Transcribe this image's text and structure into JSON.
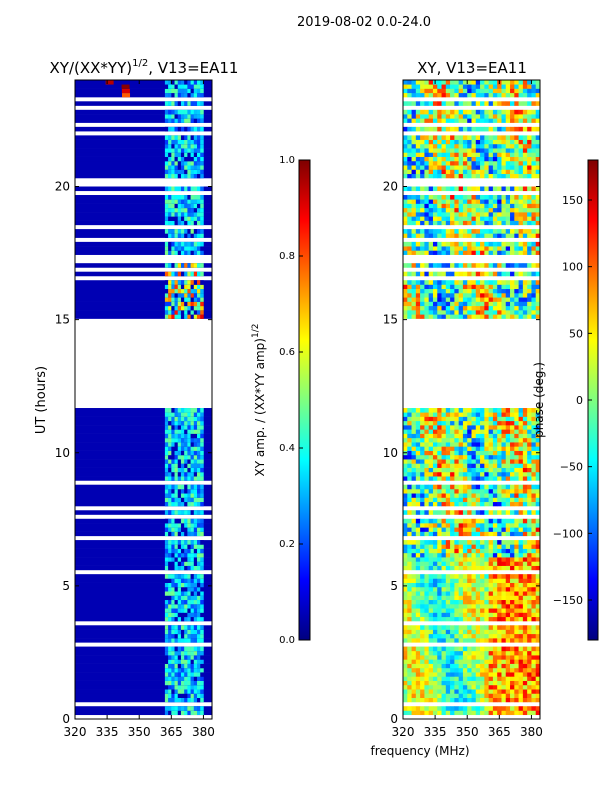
{
  "figure": {
    "suptitle": "2019-08-02 0.0-24.0",
    "shared_xlabel": "frequency (MHz)"
  },
  "chart_data": [
    {
      "type": "heatmap",
      "title_main": "XY/(XX*YY)",
      "title_sup": "1/2",
      "title_rest": ", V13=EA11",
      "ylabel": "UT (hours)",
      "xlim": [
        320,
        384
      ],
      "ylim": [
        0,
        24
      ],
      "xticks": [
        320,
        335,
        350,
        365,
        380
      ],
      "yticks": [
        0,
        5,
        10,
        15,
        20
      ],
      "data_gap_hours": [
        11.8,
        15.0
      ],
      "active_band_mhz": [
        362,
        380
      ],
      "colorbar": {
        "label_main": "XY amp. / (XX*YY amp)",
        "label_sup": "1/2",
        "range": [
          0.0,
          1.0
        ],
        "ticks": [
          "0.0",
          "0.2",
          "0.4",
          "0.6",
          "0.8",
          "1.0"
        ],
        "colormap": "jet"
      }
    },
    {
      "type": "heatmap",
      "title": "XY, V13=EA11",
      "xlim": [
        320,
        384
      ],
      "ylim": [
        0,
        24
      ],
      "xticks": [
        320,
        335,
        350,
        365,
        380
      ],
      "yticks": [
        0,
        5,
        10,
        15,
        20
      ],
      "data_gap_hours": [
        11.8,
        15.0
      ],
      "colorbar": {
        "label": "phase (deg.)",
        "range": [
          -180,
          180
        ],
        "ticks": [
          "150",
          "100",
          "50",
          "0",
          "−50",
          "−100",
          "−150"
        ],
        "tick_values": [
          150,
          100,
          50,
          0,
          -50,
          -100,
          -150
        ],
        "colormap": "jet"
      }
    }
  ]
}
